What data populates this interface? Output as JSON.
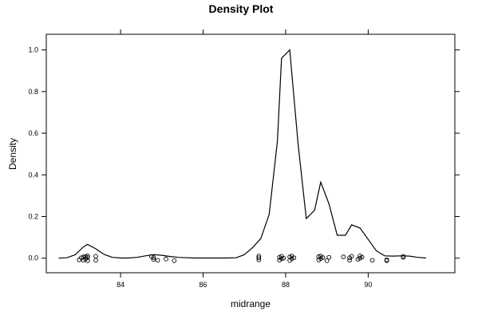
{
  "chart_data": {
    "type": "line",
    "title": "Density Plot",
    "xlabel": "midrange",
    "ylabel": "Density",
    "xlim": [
      82.2,
      92.1
    ],
    "ylim": [
      -0.07,
      1.075
    ],
    "x_ticks": [
      84,
      86,
      88,
      90
    ],
    "x_tick_labels": [
      "84",
      "86",
      "88",
      "90"
    ],
    "y_ticks": [
      0.0,
      0.2,
      0.4,
      0.6,
      0.8,
      1.0
    ],
    "y_tick_labels": [
      "0.0",
      "0.2",
      "0.4",
      "0.6",
      "0.8",
      "1.0"
    ],
    "grid": false,
    "series": [
      {
        "x": [
          82.5,
          82.7,
          82.9,
          83.1,
          83.2,
          83.4,
          83.6,
          83.8,
          84.0,
          84.2,
          84.4,
          84.6,
          84.8,
          85.0,
          85.2,
          85.4,
          85.6,
          85.8,
          86.0,
          86.2,
          86.4,
          86.6,
          86.8,
          87.0,
          87.2,
          87.4,
          87.6,
          87.8,
          87.9,
          88.1,
          88.3,
          88.5,
          88.7,
          88.85,
          89.05,
          89.25,
          89.45,
          89.6,
          89.8,
          90.0,
          90.2,
          90.4,
          90.6,
          90.8,
          91.0,
          91.2,
          91.4
        ],
        "y": [
          0.0,
          0.002,
          0.016,
          0.054,
          0.066,
          0.045,
          0.018,
          0.004,
          0.001,
          0.001,
          0.004,
          0.011,
          0.017,
          0.014,
          0.008,
          0.004,
          0.002,
          0.001,
          0.001,
          0.001,
          0.001,
          0.001,
          0.002,
          0.017,
          0.051,
          0.095,
          0.21,
          0.56,
          0.96,
          1.0,
          0.55,
          0.19,
          0.23,
          0.365,
          0.26,
          0.11,
          0.11,
          0.16,
          0.145,
          0.09,
          0.035,
          0.011,
          0.01,
          0.011,
          0.01,
          0.004,
          0.001
        ]
      }
    ],
    "rug_points": {
      "x": [
        83.0,
        83.05,
        83.1,
        83.1,
        83.15,
        83.15,
        83.2,
        83.2,
        83.2,
        83.4,
        83.4,
        84.75,
        84.8,
        84.8,
        84.9,
        85.1,
        85.3,
        87.35,
        87.35,
        87.35,
        87.85,
        87.85,
        87.9,
        87.9,
        87.95,
        88.1,
        88.1,
        88.15,
        88.15,
        88.2,
        88.8,
        88.8,
        88.85,
        88.85,
        88.9,
        89.0,
        89.05,
        89.4,
        89.55,
        89.55,
        89.6,
        89.75,
        89.8,
        89.8,
        89.85,
        90.1,
        90.45,
        90.45,
        90.85,
        90.85
      ],
      "y": [
        -0.008,
        0.002,
        -0.01,
        0.006,
        -0.004,
        0.008,
        -0.012,
        0.003,
        0.011,
        -0.01,
        0.009,
        0.008,
        -0.006,
        0.003,
        -0.01,
        -0.004,
        -0.012,
        -0.008,
        0.002,
        0.01,
        -0.01,
        0.004,
        -0.002,
        0.009,
        0.0,
        -0.011,
        0.006,
        -0.003,
        0.01,
        0.002,
        -0.009,
        0.007,
        -0.002,
        0.01,
        0.003,
        -0.012,
        0.004,
        0.006,
        -0.01,
        0.002,
        0.009,
        -0.006,
        0.0,
        0.011,
        0.005,
        -0.01,
        -0.008,
        -0.012,
        0.004,
        0.009
      ]
    }
  }
}
